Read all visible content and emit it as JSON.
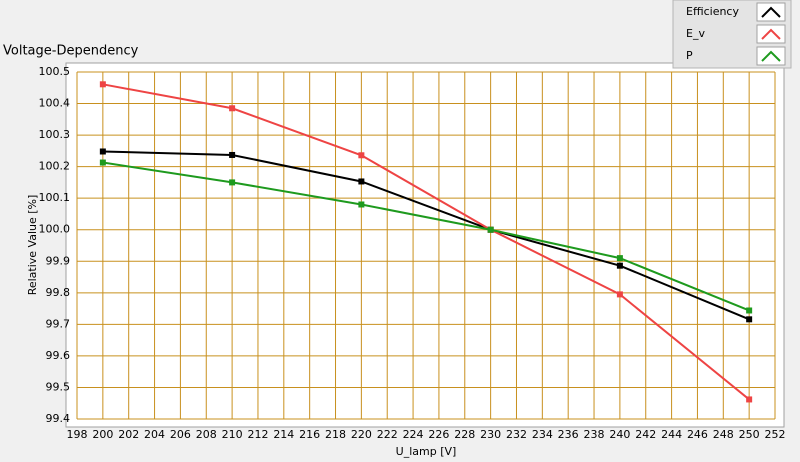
{
  "chart_data": {
    "type": "line",
    "title": "Voltage-Dependency",
    "x_label": "U_lamp [V]",
    "y_label": "Relative Value [%]",
    "x": [
      200,
      210,
      220,
      230,
      240,
      250
    ],
    "series": [
      {
        "name": "Efficiency",
        "color": "#000000",
        "values": [
          100.248,
          100.237,
          100.153,
          100.0,
          99.886,
          99.716
        ]
      },
      {
        "name": "E_v",
        "color": "#ee4444",
        "values": [
          100.461,
          100.385,
          100.236,
          100.0,
          99.795,
          99.462
        ]
      },
      {
        "name": "P",
        "color": "#1e9a1e",
        "values": [
          100.213,
          100.15,
          100.08,
          100.0,
          99.91,
          99.744
        ]
      }
    ],
    "xlim": [
      198,
      252
    ],
    "xticks": [
      198,
      200,
      202,
      204,
      206,
      208,
      210,
      212,
      214,
      216,
      218,
      220,
      222,
      224,
      226,
      228,
      230,
      232,
      234,
      236,
      238,
      240,
      242,
      244,
      246,
      248,
      250,
      252
    ],
    "ylim": [
      99.4,
      100.5
    ],
    "yticks": [
      99.4,
      99.5,
      99.6,
      99.7,
      99.8,
      99.9,
      {
        "value": 100.0,
        "label": "100.0"
      },
      100.1,
      100.2,
      100.3,
      100.4,
      100.5
    ],
    "grid": true,
    "grid_color": "#c8901e",
    "legend": "top-right",
    "markers": "square"
  }
}
